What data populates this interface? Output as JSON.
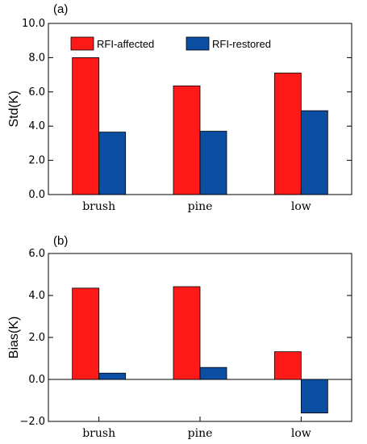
{
  "chart_data": [
    {
      "type": "bar",
      "panel_label": "(a)",
      "ylabel": "Std(K)",
      "ylim": [
        0,
        10
      ],
      "yticks": [
        "0.0",
        "2.0",
        "4.0",
        "6.0",
        "8.0",
        "10.0"
      ],
      "categories": [
        "brush",
        "pine",
        "low"
      ],
      "series": [
        {
          "name": "RFI-affected",
          "values": [
            8.0,
            6.35,
            7.1
          ],
          "color": "#ff1a1a"
        },
        {
          "name": "RFI-restored",
          "values": [
            3.65,
            3.7,
            4.9
          ],
          "color": "#0b4ea2"
        }
      ],
      "legend": "top-inside"
    },
    {
      "type": "bar",
      "panel_label": "(b)",
      "ylabel": "Bias(K)",
      "ylim": [
        -2,
        6
      ],
      "yticks": [
        "−2.0",
        "0.0",
        "2.0",
        "4.0",
        "6.0"
      ],
      "categories": [
        "brush",
        "pine",
        "low"
      ],
      "series": [
        {
          "name": "RFI-affected",
          "values": [
            4.35,
            4.42,
            1.32
          ],
          "color": "#ff1a1a"
        },
        {
          "name": "RFI-restored",
          "values": [
            0.3,
            0.57,
            -1.6
          ],
          "color": "#0b4ea2"
        }
      ]
    }
  ]
}
